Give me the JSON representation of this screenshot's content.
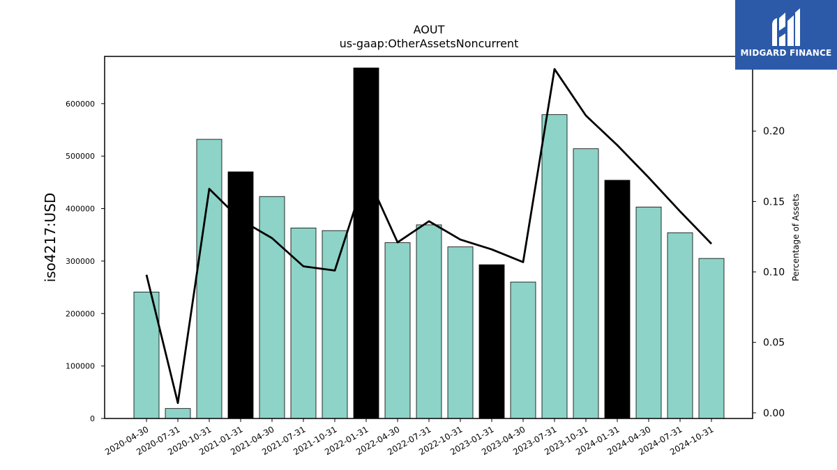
{
  "brand": {
    "name": "MIDGARD FINANCE",
    "bg_color": "#2c5aa8",
    "icon": "midgard-logo-icon"
  },
  "chart_data": {
    "type": "bar",
    "title": "AOUT",
    "subtitle": "us-gaap:OtherAssetsNoncurrent",
    "ylabel": "iso4217:USD",
    "y2label": "Percentage of Assets",
    "categories": [
      "2020-04-30",
      "2020-07-31",
      "2020-10-31",
      "2021-01-31",
      "2021-04-30",
      "2021-07-31",
      "2021-10-31",
      "2022-01-31",
      "2022-04-30",
      "2022-07-31",
      "2022-10-31",
      "2023-01-31",
      "2023-04-30",
      "2023-07-31",
      "2023-10-31",
      "2024-01-31",
      "2024-04-30",
      "2024-07-31",
      "2024-10-31"
    ],
    "series": [
      {
        "type": "bar",
        "values": [
          241000,
          19000,
          532000,
          470000,
          423000,
          363000,
          358000,
          668000,
          335000,
          369000,
          327000,
          293000,
          260000,
          579000,
          514000,
          454000,
          403000,
          354000,
          305000
        ],
        "highlight": [
          false,
          false,
          false,
          true,
          false,
          false,
          false,
          true,
          false,
          false,
          false,
          true,
          false,
          false,
          false,
          true,
          false,
          false,
          false
        ],
        "color": "#8dd3c7",
        "highlight_color": "#000000"
      },
      {
        "type": "line",
        "axis": "right",
        "values": [
          0.098,
          0.007,
          0.159,
          0.137,
          0.124,
          0.104,
          0.101,
          0.17,
          0.121,
          0.136,
          0.123,
          0.116,
          0.107,
          0.244,
          0.211,
          0.19,
          0.167,
          0.143,
          0.12
        ],
        "color": "#000000"
      }
    ],
    "ylim": [
      0,
      690000
    ],
    "yticks": [
      0,
      100000,
      200000,
      300000,
      400000,
      500000,
      600000
    ],
    "y2lim": [
      -0.004,
      0.253
    ],
    "y2ticks": [
      "0.00",
      "0.05",
      "0.10",
      "0.15",
      "0.20"
    ],
    "grid": false,
    "legend": "none"
  }
}
